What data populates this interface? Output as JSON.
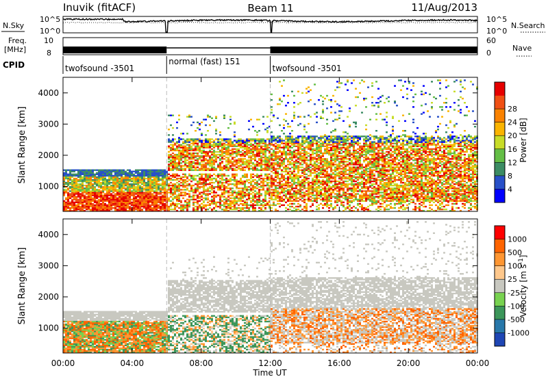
{
  "header": {
    "station": "Inuvik (fitACF)",
    "beam": "Beam 11",
    "date": "11/Aug/2013"
  },
  "labels": {
    "nsky": "N.Sky",
    "nsearch": "N.Search",
    "freq": "Freq.",
    "mhz": "[MHz]",
    "nave": "Nave",
    "cpid": "CPID",
    "nsky_ticks": [
      "10^5",
      "10^0"
    ],
    "nsearch_ticks": [
      "10^5",
      "10^0"
    ],
    "freq_ticks": [
      "10",
      "8"
    ],
    "nave_ticks": [
      "60",
      "0"
    ]
  },
  "cpid_segments": [
    {
      "start": 0,
      "end": 6,
      "label": "twofsound -3501"
    },
    {
      "start": 6,
      "end": 12,
      "label": "normal (fast) 151"
    },
    {
      "start": 12,
      "end": 24,
      "label": "twofsound -3501"
    }
  ],
  "chart_data": [
    {
      "type": "heatmap",
      "name": "power",
      "ylabel": "Slant Range [km]",
      "ylim": [
        200,
        4500
      ],
      "yticks": [
        1000,
        2000,
        3000,
        4000
      ],
      "xlim": [
        0,
        24
      ],
      "colorbar": {
        "label": "Power [dB]",
        "levels": [
          "4",
          "8",
          "12",
          "16",
          "20",
          "24",
          "28"
        ],
        "colors": [
          "#0000ff",
          "#2850c8",
          "#3c8c64",
          "#64be46",
          "#c8dc28",
          "#fab400",
          "#fa8200",
          "#f05014",
          "#e60000"
        ]
      }
    },
    {
      "type": "heatmap",
      "name": "velocity",
      "ylabel": "Slant Range [km]",
      "ylim": [
        200,
        4500
      ],
      "yticks": [
        1000,
        2000,
        3000,
        4000
      ],
      "xlim": [
        0,
        24
      ],
      "xlabel": "Time UT",
      "xticks": [
        "00:00",
        "04:00",
        "08:00",
        "12:00",
        "16:00",
        "20:00",
        "00:00"
      ],
      "colorbar": {
        "label": "Velocity [m s^-1]",
        "levels": [
          "1000",
          "500",
          "100",
          "25",
          "-25",
          "-100",
          "-500",
          "-1000"
        ],
        "colors": [
          "#1e46b4",
          "#2878aa",
          "#3c965a",
          "#78d250",
          "#c8c8c0",
          "#ffc88c",
          "#ff9632",
          "#ff6400",
          "#ff0000"
        ]
      }
    }
  ]
}
